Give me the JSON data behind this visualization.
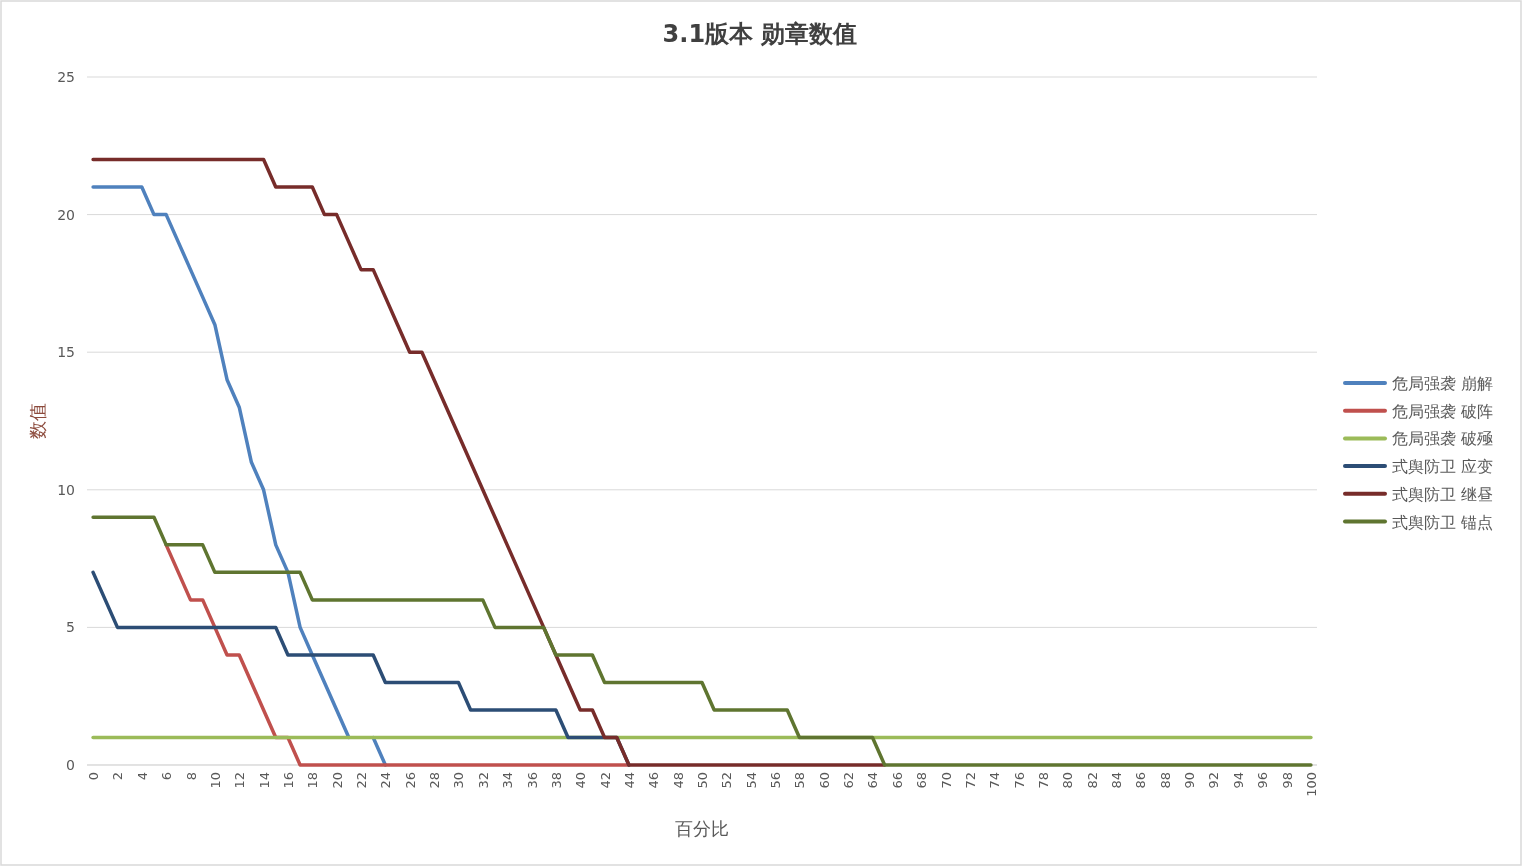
{
  "chart_data": {
    "type": "line",
    "title": "3.1版本 勋章数值",
    "xlabel": "百分比",
    "ylabel": "数值",
    "categories": [
      "0",
      null,
      "2",
      null,
      "4",
      null,
      "6",
      null,
      "8",
      null,
      "10",
      null,
      "12",
      null,
      "14",
      null,
      "16",
      null,
      "18",
      null,
      "20",
      null,
      "22",
      null,
      "24",
      null,
      "26",
      null,
      "28",
      null,
      "30",
      null,
      "32",
      null,
      "34",
      null,
      "36",
      null,
      "38",
      null,
      "40",
      null,
      "42",
      null,
      "44",
      null,
      "46",
      null,
      "48",
      null,
      "50",
      null,
      "52",
      null,
      "54",
      null,
      "56",
      null,
      "58",
      null,
      "60",
      null,
      "62",
      null,
      "64",
      null,
      "66",
      null,
      "68",
      null,
      "70",
      null,
      "72",
      null,
      "74",
      null,
      "76",
      null,
      "78",
      null,
      "80",
      null,
      "82",
      null,
      "84",
      null,
      "86",
      null,
      "88",
      null,
      "90",
      null,
      "92",
      null,
      "94",
      null,
      "96",
      null,
      "98",
      null,
      "100"
    ],
    "ylim": [
      0,
      25
    ],
    "yticks": [
      0,
      5,
      10,
      15,
      20,
      25
    ],
    "grid": "y",
    "legend": "right",
    "marker": "none",
    "line_style": "solid",
    "series": [
      {
        "name": "危局强袭 崩解",
        "color": "#4f81bd",
        "values": [
          21,
          21,
          21,
          21,
          21,
          20,
          20,
          19,
          18,
          17,
          16,
          14,
          13,
          11,
          10,
          8,
          7,
          5,
          4,
          3,
          2,
          1,
          null,
          1,
          0,
          null,
          null,
          null,
          null,
          null,
          null,
          null,
          null,
          null,
          null,
          null,
          null,
          null,
          null,
          null,
          null,
          null,
          null,
          null,
          null,
          null,
          null,
          null,
          null,
          null,
          null,
          null,
          null,
          null,
          null,
          null,
          null,
          null,
          null,
          null,
          null,
          null,
          null,
          null,
          null,
          null,
          null,
          null,
          null,
          null,
          null,
          null,
          null,
          null,
          null,
          null,
          null,
          null,
          null,
          null,
          null,
          null,
          null,
          null,
          null,
          null,
          null,
          null,
          null,
          null,
          null,
          null,
          null,
          null,
          null,
          null,
          null,
          null,
          null,
          null,
          null
        ]
      },
      {
        "name": "危局强袭 破阵",
        "color": "#c0504d",
        "values": [
          null,
          null,
          null,
          null,
          null,
          null,
          8,
          7,
          6,
          6,
          5,
          4,
          4,
          3,
          2,
          1,
          1,
          0,
          0,
          0,
          0,
          0,
          0,
          0,
          0,
          0,
          0,
          0,
          0,
          0,
          0,
          0,
          0,
          0,
          0,
          0,
          0,
          0,
          0,
          0,
          0,
          0,
          0,
          0,
          0,
          null,
          null,
          null,
          null,
          null,
          null,
          null,
          null,
          null,
          null,
          null,
          null,
          null,
          null,
          null,
          null,
          null,
          null,
          null,
          null,
          null,
          null,
          null,
          null,
          null,
          null,
          null,
          null,
          null,
          null,
          null,
          null,
          null,
          null,
          null,
          null,
          null,
          null,
          null,
          null,
          null,
          null,
          null,
          null,
          null,
          null,
          null,
          null,
          null,
          null,
          null,
          null,
          null,
          null,
          null,
          null
        ]
      },
      {
        "name": "危局强袭 破殛",
        "color": "#9bbb59",
        "values": [
          1,
          1,
          1,
          1,
          1,
          1,
          1,
          1,
          1,
          1,
          1,
          1,
          1,
          1,
          1,
          1,
          1,
          1,
          1,
          1,
          1,
          1,
          1,
          1,
          1,
          1,
          1,
          1,
          1,
          1,
          1,
          1,
          1,
          1,
          1,
          1,
          1,
          1,
          1,
          1,
          1,
          1,
          1,
          1,
          1,
          1,
          1,
          1,
          1,
          1,
          1,
          1,
          1,
          1,
          1,
          1,
          1,
          1,
          1,
          1,
          1,
          1,
          1,
          1,
          1,
          1,
          1,
          1,
          1,
          1,
          1,
          1,
          1,
          1,
          1,
          1,
          1,
          1,
          1,
          1,
          1,
          1,
          1,
          1,
          1,
          1,
          1,
          1,
          1,
          1,
          1,
          1,
          1,
          1,
          1,
          1,
          1,
          1,
          1,
          1,
          1
        ]
      },
      {
        "name": "式舆防卫 应变",
        "color": "#2c4d75",
        "values": [
          7,
          6,
          5,
          5,
          5,
          5,
          5,
          5,
          5,
          5,
          5,
          5,
          5,
          5,
          5,
          5,
          4,
          4,
          4,
          4,
          4,
          4,
          4,
          4,
          3,
          3,
          3,
          3,
          3,
          3,
          3,
          2,
          2,
          2,
          2,
          2,
          2,
          2,
          2,
          1,
          1,
          1,
          1,
          1,
          0,
          null,
          null,
          null,
          null,
          null,
          null,
          null,
          null,
          null,
          null,
          null,
          null,
          null,
          null,
          null,
          null,
          null,
          null,
          null,
          null,
          null,
          null,
          null,
          null,
          null,
          null,
          null,
          null,
          null,
          null,
          null,
          null,
          null,
          null,
          null,
          null,
          null,
          null,
          null,
          null,
          null,
          null,
          null,
          null,
          null,
          null,
          null,
          null,
          null,
          null,
          null,
          null,
          null,
          null,
          null,
          null
        ]
      },
      {
        "name": "式舆防卫 继昼",
        "color": "#772c2a",
        "values": [
          22,
          22,
          22,
          22,
          22,
          22,
          22,
          22,
          22,
          22,
          22,
          22,
          22,
          22,
          22,
          21,
          21,
          21,
          21,
          20,
          20,
          19,
          18,
          18,
          17,
          16,
          15,
          15,
          14,
          13,
          12,
          11,
          10,
          9,
          8,
          7,
          6,
          5,
          4,
          3,
          2,
          2,
          1,
          1,
          0,
          0,
          0,
          0,
          0,
          0,
          0,
          0,
          0,
          0,
          0,
          0,
          0,
          0,
          0,
          0,
          0,
          0,
          0,
          0,
          0,
          0,
          null,
          null,
          null,
          null,
          null,
          null,
          null,
          null,
          null,
          null,
          null,
          null,
          null,
          null,
          null,
          null,
          null,
          null,
          null,
          null,
          null,
          null,
          null,
          null,
          null,
          null,
          null,
          null,
          null,
          null,
          null,
          null,
          null,
          null,
          null
        ]
      },
      {
        "name": "式舆防卫 锚点",
        "color": "#5f7530",
        "values": [
          9,
          9,
          9,
          9,
          9,
          9,
          8,
          8,
          8,
          8,
          7,
          7,
          7,
          7,
          7,
          7,
          7,
          7,
          6,
          6,
          6,
          6,
          6,
          6,
          6,
          6,
          6,
          6,
          6,
          6,
          6,
          6,
          6,
          5,
          5,
          5,
          5,
          5,
          4,
          4,
          4,
          4,
          3,
          3,
          3,
          3,
          3,
          3,
          3,
          3,
          3,
          2,
          2,
          2,
          2,
          2,
          2,
          2,
          1,
          1,
          1,
          1,
          1,
          1,
          1,
          0,
          0,
          0,
          0,
          0,
          0,
          0,
          0,
          0,
          0,
          0,
          0,
          0,
          0,
          0,
          0,
          0,
          0,
          0,
          0,
          0,
          0,
          0,
          0,
          0,
          0,
          0,
          0,
          0,
          0,
          0,
          0,
          0,
          0,
          0,
          0
        ]
      }
    ]
  }
}
